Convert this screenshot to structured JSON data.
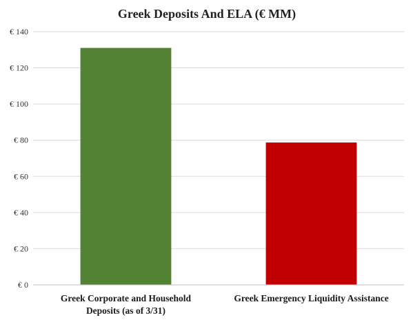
{
  "chart_data": {
    "type": "bar",
    "title": "Greek Deposits And ELA (€ MM)",
    "xlabel": "",
    "ylabel": "",
    "categories": [
      [
        "Greek Corporate and Household",
        "Deposits (as of 3/31)"
      ],
      [
        "Greek Emergency Liquidity Assistance"
      ]
    ],
    "values": [
      131,
      78.7
    ],
    "colors": [
      "#548235",
      "#c00000"
    ],
    "ylim": [
      0,
      140
    ],
    "yticks": [
      0,
      20,
      40,
      60,
      80,
      100,
      120,
      140
    ],
    "ytick_labels": [
      "€ 0",
      "€ 20",
      "€ 40",
      "€ 60",
      "€ 80",
      "€ 100",
      "€ 120",
      "€ 140"
    ],
    "grid": true,
    "legend": "none"
  }
}
